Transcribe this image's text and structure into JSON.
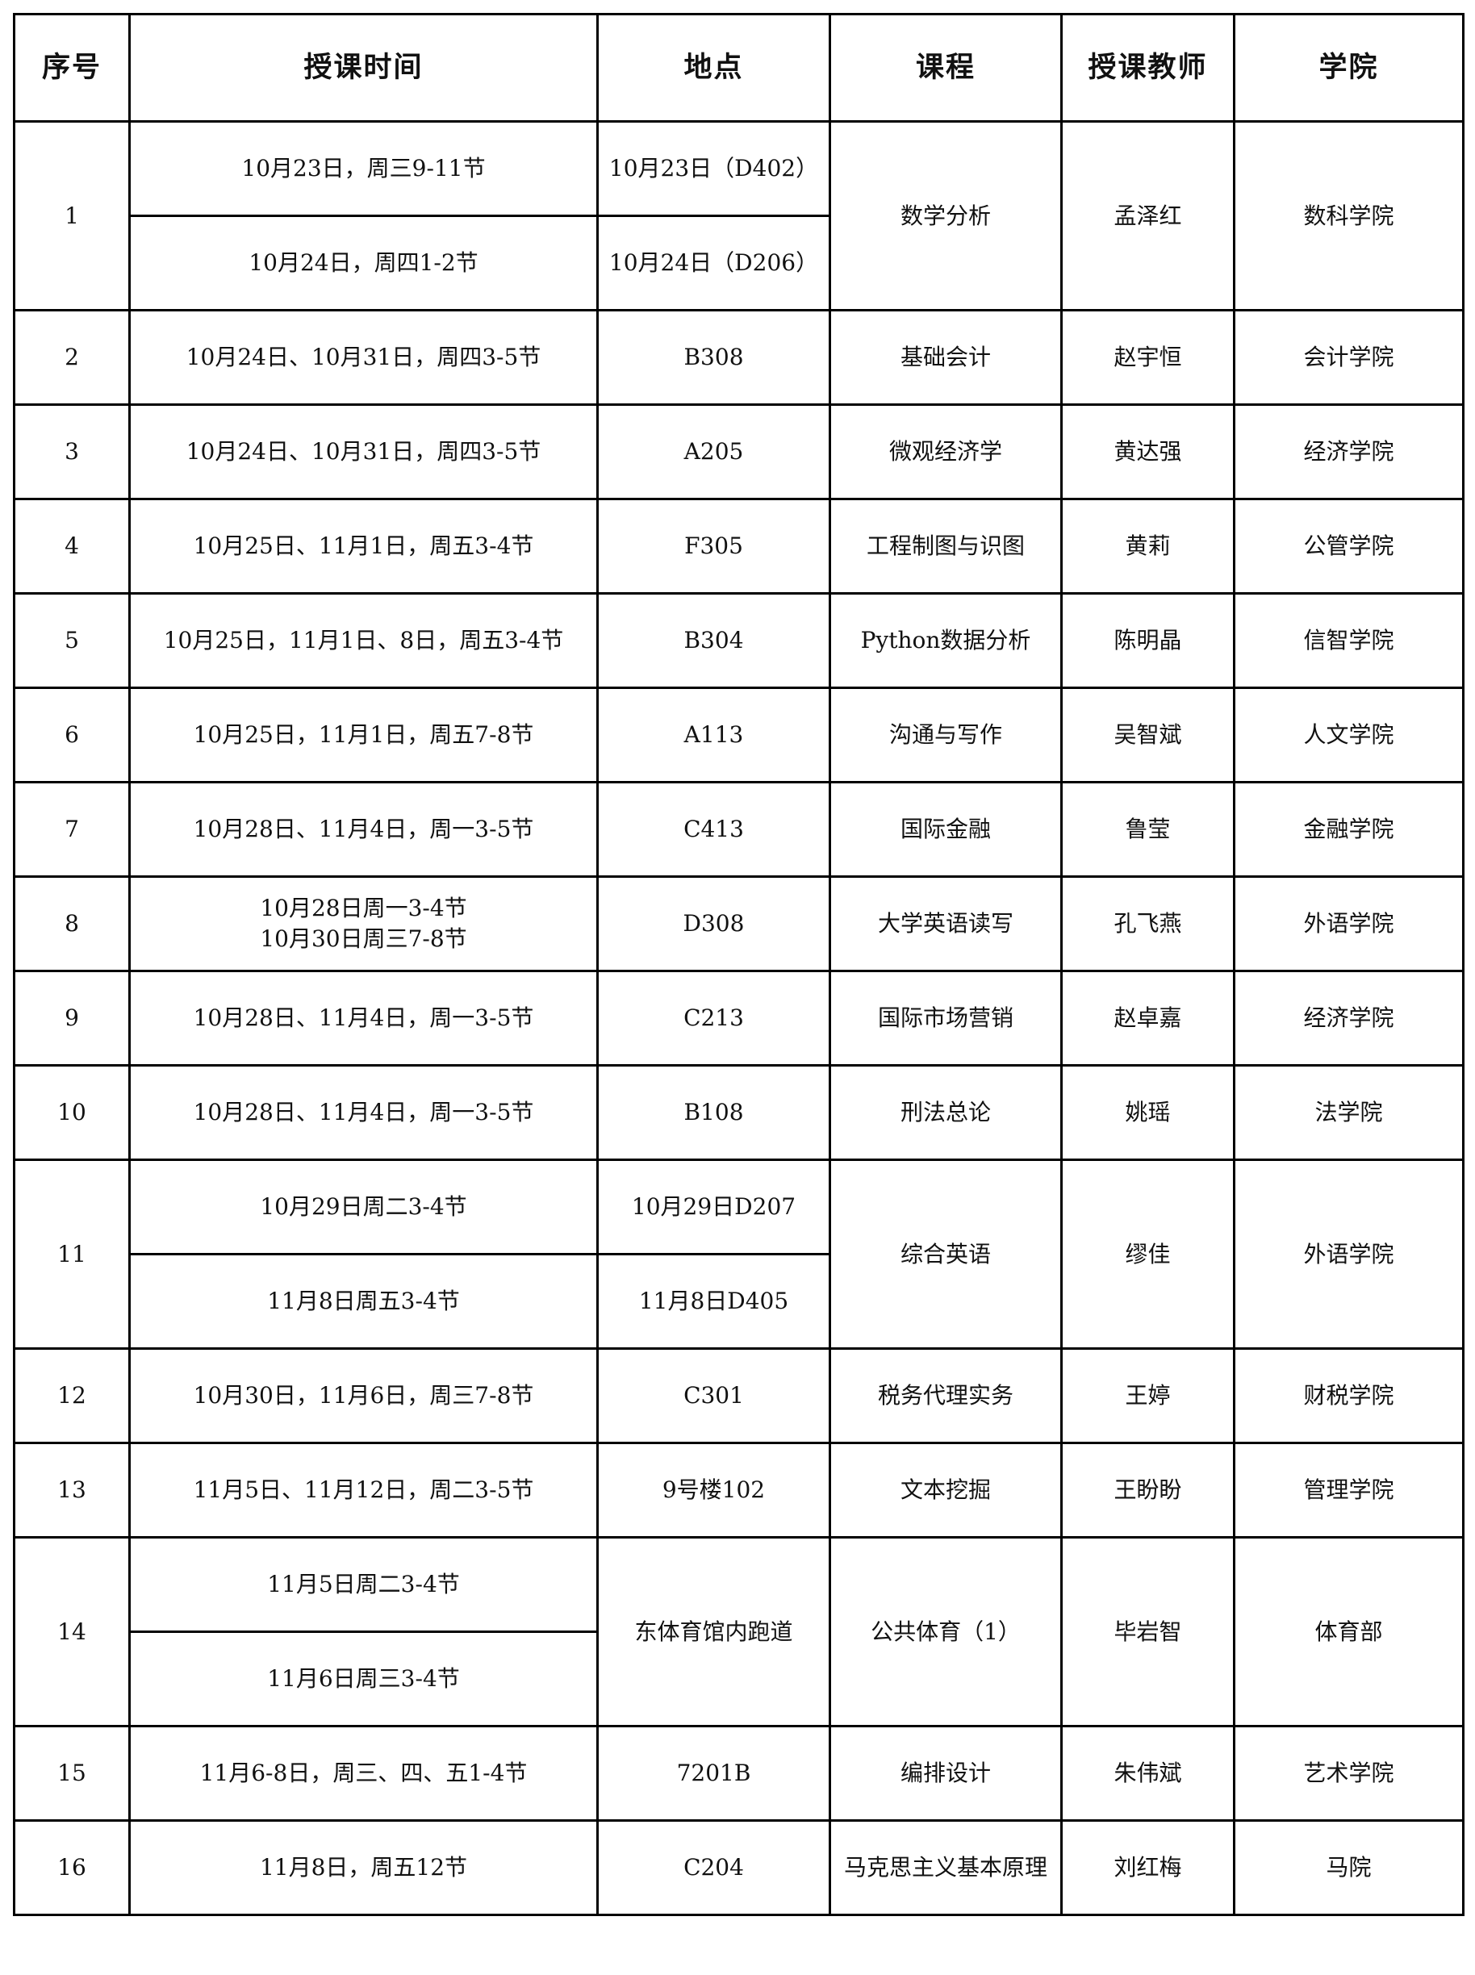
{
  "headers": [
    "序号",
    "授课时间",
    "地点",
    "课程",
    "授课教师",
    "学院"
  ],
  "rows": [
    {
      "no": "1",
      "sessions": [
        {
          "time": "10月23日，周三9-11节",
          "place": "10月23日（D402）"
        },
        {
          "time": "10月24日，周四1-2节",
          "place": "10月24日（D206）"
        }
      ],
      "course": "数学分析",
      "teacher": "孟泽红",
      "college": "数科学院"
    },
    {
      "no": "2",
      "sessions": [
        {
          "time": "10月24日、10月31日，周四3-5节"
        }
      ],
      "place": "B308",
      "course": "基础会计",
      "teacher": "赵宇恒",
      "college": "会计学院"
    },
    {
      "no": "3",
      "sessions": [
        {
          "time": "10月24日、10月31日，周四3-5节"
        }
      ],
      "place": "A205",
      "course": "微观经济学",
      "teacher": "黄达强",
      "college": "经济学院"
    },
    {
      "no": "4",
      "sessions": [
        {
          "time": "10月25日、11月1日，周五3-4节"
        }
      ],
      "place": "F305",
      "course": "工程制图与识图",
      "teacher": "黄莉",
      "college": "公管学院"
    },
    {
      "no": "5",
      "sessions": [
        {
          "time": "10月25日，11月1日、8日，周五3-4节"
        }
      ],
      "place": "B304",
      "course": "Python数据分析",
      "teacher": "陈明晶",
      "college": "信智学院"
    },
    {
      "no": "6",
      "sessions": [
        {
          "time": "10月25日，11月1日，周五7-8节"
        }
      ],
      "place": "A113",
      "course": "沟通与写作",
      "teacher": "吴智斌",
      "college": "人文学院"
    },
    {
      "no": "7",
      "sessions": [
        {
          "time": "10月28日、11月4日，周一3-5节"
        }
      ],
      "place": "C413",
      "course": "国际金融",
      "teacher": "鲁莹",
      "college": "金融学院"
    },
    {
      "no": "8",
      "sessions": [
        {
          "time": "10月28日周一3-4节\n10月30日周三7-8节"
        }
      ],
      "place": "D308",
      "course": "大学英语读写",
      "teacher": "孔飞燕",
      "college": "外语学院"
    },
    {
      "no": "9",
      "sessions": [
        {
          "time": "10月28日、11月4日，周一3-5节"
        }
      ],
      "place": "C213",
      "course": "国际市场营销",
      "teacher": "赵卓嘉",
      "college": "经济学院"
    },
    {
      "no": "10",
      "sessions": [
        {
          "time": "10月28日、11月4日，周一3-5节"
        }
      ],
      "place": "B108",
      "course": "刑法总论",
      "teacher": "姚瑶",
      "college": "法学院"
    },
    {
      "no": "11",
      "sessions": [
        {
          "time": "10月29日周二3-4节",
          "place": "10月29日D207"
        },
        {
          "time": "11月8日周五3-4节",
          "place": "11月8日D405"
        }
      ],
      "course": "综合英语",
      "teacher": "缪佳",
      "college": "外语学院"
    },
    {
      "no": "12",
      "sessions": [
        {
          "time": "10月30日，11月6日，周三7-8节"
        }
      ],
      "place": "C301",
      "course": "税务代理实务",
      "teacher": "王婷",
      "college": "财税学院"
    },
    {
      "no": "13",
      "sessions": [
        {
          "time": "11月5日、11月12日，周二3-5节"
        }
      ],
      "place": "9号楼102",
      "course": "文本挖掘",
      "teacher": "王盼盼",
      "college": "管理学院"
    },
    {
      "no": "14",
      "sessions": [
        {
          "time": "11月5日周二3-4节"
        },
        {
          "time": "11月6日周三3-4节"
        }
      ],
      "place": "东体育馆内跑道",
      "course": "公共体育（1）",
      "teacher": "毕岩智",
      "college": "体育部"
    },
    {
      "no": "15",
      "sessions": [
        {
          "time": "11月6-8日，周三、四、五1-4节"
        }
      ],
      "place": "7201B",
      "course": "编排设计",
      "teacher": "朱伟斌",
      "college": "艺术学院"
    },
    {
      "no": "16",
      "sessions": [
        {
          "time": "11月8日，周五12节"
        }
      ],
      "place": "C204",
      "course": "马克思主义基本原理",
      "teacher": "刘红梅",
      "college": "马院"
    }
  ]
}
